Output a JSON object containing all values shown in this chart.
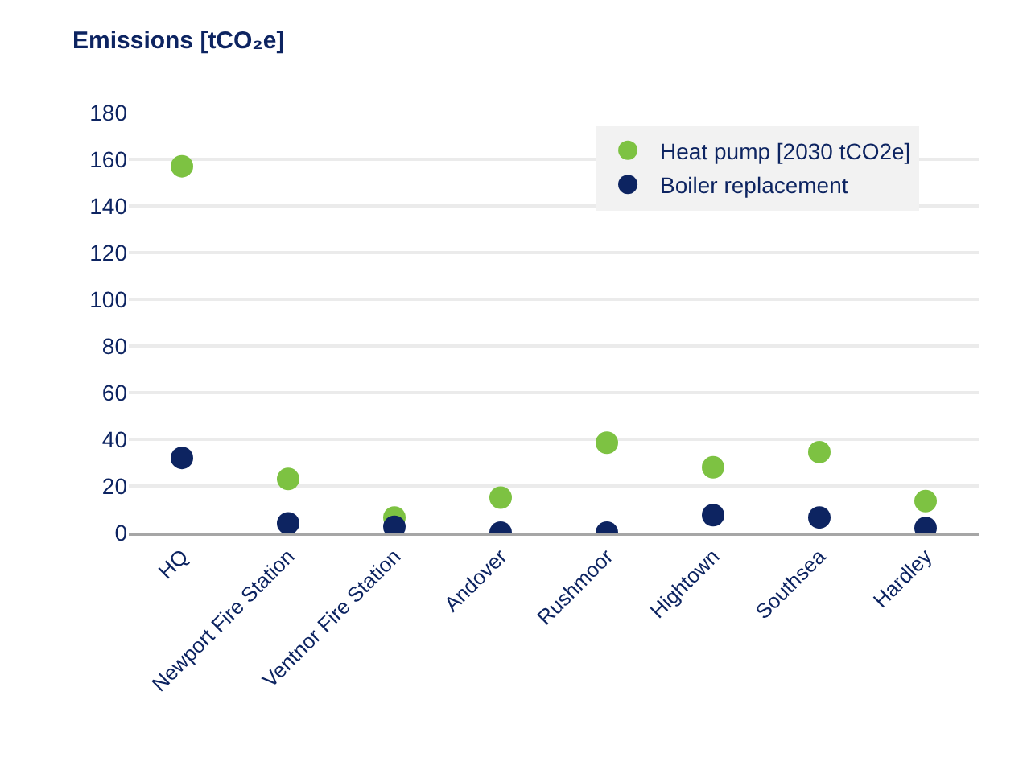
{
  "chart_data": {
    "type": "scatter",
    "ylabel": "Emissions [tCO₂e]",
    "categories": [
      "HQ",
      "Newport Fire Station",
      "Ventnor Fire Station",
      "Andover",
      "Rushmoor",
      "Hightown",
      "Southsea",
      "Hardley"
    ],
    "series": [
      {
        "name": "Heat pump [2030 tCO2e]",
        "color": "#7dc242",
        "values": [
          157,
          23,
          6.5,
          15,
          38.5,
          28,
          34.5,
          13.5
        ]
      },
      {
        "name": "Boiler replacement",
        "color": "#0d2461",
        "values": [
          32,
          4,
          2.5,
          0,
          0,
          7.5,
          6.5,
          2
        ]
      }
    ],
    "ylim": [
      0,
      180
    ],
    "yticks": [
      0,
      20,
      40,
      60,
      80,
      100,
      120,
      140,
      160,
      180
    ],
    "grid": "y",
    "legend": "top right",
    "marker": "circle"
  }
}
